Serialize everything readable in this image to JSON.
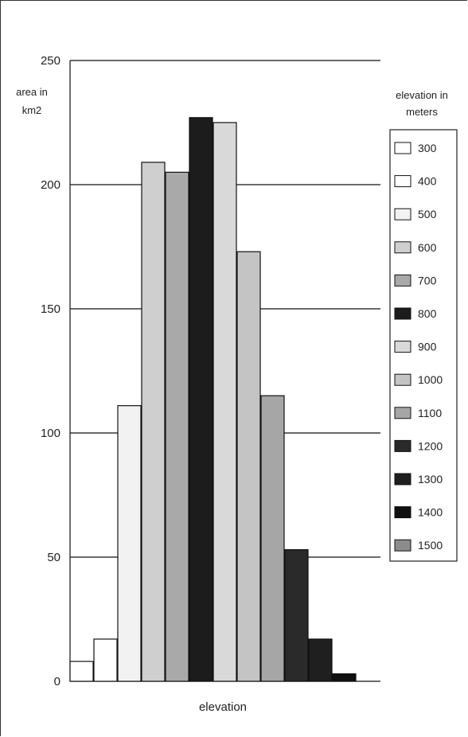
{
  "chart_data": {
    "type": "bar",
    "categories": [
      "300",
      "400",
      "500",
      "600",
      "700",
      "800",
      "900",
      "1000",
      "1100",
      "1200",
      "1300",
      "1400",
      "1500"
    ],
    "values": [
      8,
      17,
      111,
      209,
      205,
      227,
      225,
      173,
      115,
      53,
      17,
      3,
      0
    ],
    "colors": [
      "#ffffff",
      "#ffffff",
      "#f2f2f2",
      "#cfcfcf",
      "#a9a9a9",
      "#1c1c1c",
      "#d9d9d9",
      "#c4c4c4",
      "#a6a6a6",
      "#2a2a2a",
      "#1f1f1f",
      "#101010",
      "#8c8c8c"
    ],
    "ylabel": "area in km2",
    "xlabel": "elevation",
    "legend_title": "elevation in meters",
    "ylim": [
      0,
      250
    ],
    "yticks": [
      "0",
      "50",
      "100",
      "150",
      "200",
      "250"
    ],
    "grid": true,
    "legend_placement": "right"
  }
}
